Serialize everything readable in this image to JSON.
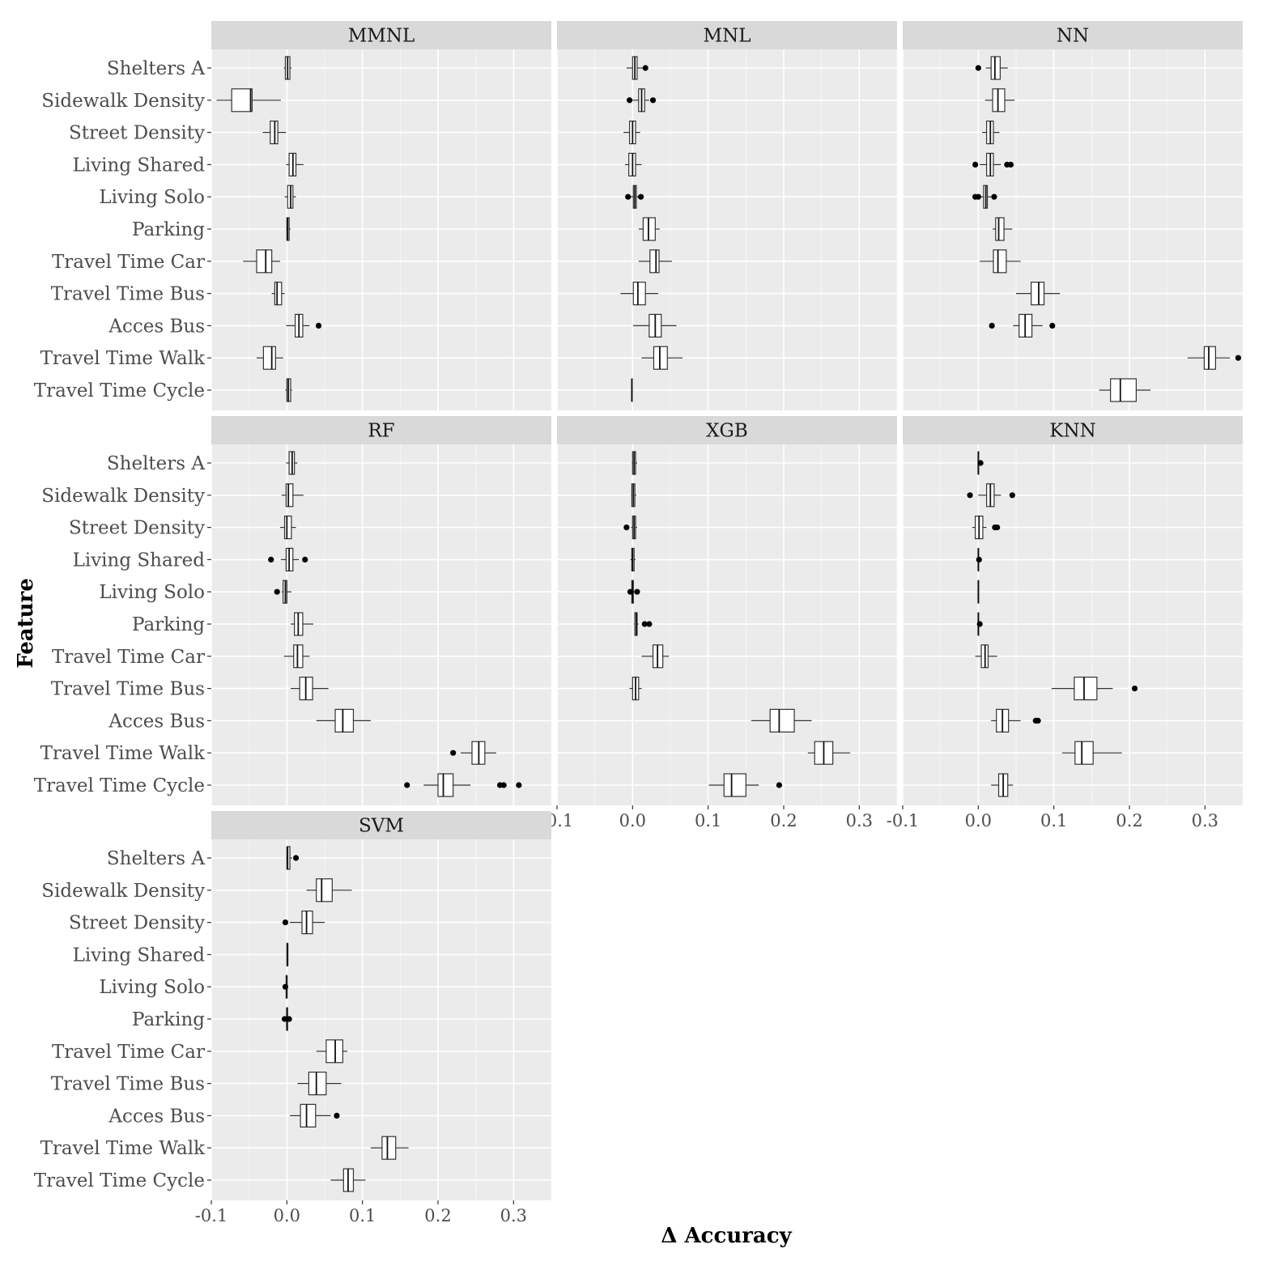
{
  "chart_data": {
    "type": "boxplot",
    "layout": "facet-wrap 3 columns",
    "xlabel": "Δ Accuracy",
    "ylabel": "Feature",
    "xlim": [
      -0.1,
      0.35
    ],
    "xticks": [
      "-0.1",
      "0.0",
      "0.1",
      "0.2",
      "0.3"
    ],
    "features": [
      "Shelters A",
      "Sidewalk Density",
      "Street Density",
      "Living Shared",
      "Living Solo",
      "Parking",
      "Travel Time Car",
      "Travel Time Bus",
      "Acces Bus",
      "Travel Time Walk",
      "Travel Time Cycle"
    ],
    "grid": true,
    "panels": [
      {
        "name": "MMNL",
        "boxes": [
          {
            "feature": "Shelters A",
            "min": -0.004,
            "q1": -0.002,
            "median": 0.001,
            "q3": 0.004,
            "max": 0.006,
            "outliers": []
          },
          {
            "feature": "Sidewalk Density",
            "min": -0.093,
            "q1": -0.073,
            "median": -0.048,
            "q3": -0.046,
            "max": -0.008,
            "outliers": []
          },
          {
            "feature": "Street Density",
            "min": -0.032,
            "q1": -0.022,
            "median": -0.016,
            "q3": -0.012,
            "max": -0.001,
            "outliers": []
          },
          {
            "feature": "Living Shared",
            "min": -0.001,
            "q1": 0.003,
            "median": 0.008,
            "q3": 0.012,
            "max": 0.022,
            "outliers": []
          },
          {
            "feature": "Living Solo",
            "min": -0.003,
            "q1": 0.001,
            "median": 0.005,
            "q3": 0.008,
            "max": 0.012,
            "outliers": []
          },
          {
            "feature": "Parking",
            "min": -0.001,
            "q1": 0.0,
            "median": 0.001,
            "q3": 0.003,
            "max": 0.005,
            "outliers": []
          },
          {
            "feature": "Travel Time Car",
            "min": -0.058,
            "q1": -0.04,
            "median": -0.028,
            "q3": -0.02,
            "max": -0.009,
            "outliers": []
          },
          {
            "feature": "Travel Time Bus",
            "min": -0.02,
            "q1": -0.016,
            "median": -0.013,
            "q3": -0.007,
            "max": -0.003,
            "outliers": []
          },
          {
            "feature": "Acces Bus",
            "min": -0.001,
            "q1": 0.011,
            "median": 0.016,
            "q3": 0.021,
            "max": 0.03,
            "outliers": [
              0.042
            ]
          },
          {
            "feature": "Travel Time Walk",
            "min": -0.04,
            "q1": -0.031,
            "median": -0.02,
            "q3": -0.015,
            "max": -0.005,
            "outliers": []
          },
          {
            "feature": "Travel Time Cycle",
            "min": -0.002,
            "q1": 0.0,
            "median": 0.002,
            "q3": 0.005,
            "max": 0.007,
            "outliers": []
          }
        ]
      },
      {
        "name": "MNL",
        "boxes": [
          {
            "feature": "Shelters A",
            "min": -0.008,
            "q1": 0.0,
            "median": 0.003,
            "q3": 0.006,
            "max": 0.013,
            "outliers": [
              0.017
            ]
          },
          {
            "feature": "Sidewalk Density",
            "min": 0.0,
            "q1": 0.008,
            "median": 0.012,
            "q3": 0.016,
            "max": 0.022,
            "outliers": [
              -0.004,
              0.027
            ]
          },
          {
            "feature": "Street Density",
            "min": -0.012,
            "q1": -0.004,
            "median": 0.0,
            "q3": 0.004,
            "max": 0.01,
            "outliers": []
          },
          {
            "feature": "Living Shared",
            "min": -0.01,
            "q1": -0.005,
            "median": 0.0,
            "q3": 0.004,
            "max": 0.012,
            "outliers": []
          },
          {
            "feature": "Living Solo",
            "min": -0.003,
            "q1": 0.001,
            "median": 0.003,
            "q3": 0.005,
            "max": 0.008,
            "outliers": [
              -0.006,
              0.011
            ]
          },
          {
            "feature": "Parking",
            "min": 0.008,
            "q1": 0.014,
            "median": 0.021,
            "q3": 0.03,
            "max": 0.036,
            "outliers": []
          },
          {
            "feature": "Travel Time Car",
            "min": 0.008,
            "q1": 0.023,
            "median": 0.031,
            "q3": 0.035,
            "max": 0.052,
            "outliers": []
          },
          {
            "feature": "Travel Time Bus",
            "min": -0.016,
            "q1": 0.001,
            "median": 0.007,
            "q3": 0.017,
            "max": 0.034,
            "outliers": []
          },
          {
            "feature": "Acces Bus",
            "min": 0.001,
            "q1": 0.022,
            "median": 0.03,
            "q3": 0.038,
            "max": 0.058,
            "outliers": []
          },
          {
            "feature": "Travel Time Walk",
            "min": 0.012,
            "q1": 0.028,
            "median": 0.036,
            "q3": 0.046,
            "max": 0.066,
            "outliers": []
          },
          {
            "feature": "Travel Time Cycle",
            "min": -0.001,
            "q1": -0.001,
            "median": -0.001,
            "q3": -0.001,
            "max": -0.001,
            "outliers": []
          }
        ]
      },
      {
        "name": "NN",
        "boxes": [
          {
            "feature": "Shelters A",
            "min": 0.01,
            "q1": 0.017,
            "median": 0.022,
            "q3": 0.029,
            "max": 0.039,
            "outliers": [
              0.0
            ]
          },
          {
            "feature": "Sidewalk Density",
            "min": 0.009,
            "q1": 0.019,
            "median": 0.026,
            "q3": 0.035,
            "max": 0.048,
            "outliers": []
          },
          {
            "feature": "Street Density",
            "min": 0.005,
            "q1": 0.011,
            "median": 0.016,
            "q3": 0.02,
            "max": 0.028,
            "outliers": []
          },
          {
            "feature": "Living Shared",
            "min": 0.002,
            "q1": 0.011,
            "median": 0.016,
            "q3": 0.02,
            "max": 0.03,
            "outliers": [
              -0.004,
              0.038,
              0.043
            ]
          },
          {
            "feature": "Living Solo",
            "min": 0.002,
            "q1": 0.007,
            "median": 0.01,
            "q3": 0.012,
            "max": 0.017,
            "outliers": [
              -0.004,
              0.0,
              0.021
            ]
          },
          {
            "feature": "Parking",
            "min": 0.019,
            "q1": 0.023,
            "median": 0.027,
            "q3": 0.034,
            "max": 0.045,
            "outliers": []
          },
          {
            "feature": "Travel Time Car",
            "min": 0.002,
            "q1": 0.02,
            "median": 0.026,
            "q3": 0.037,
            "max": 0.056,
            "outliers": []
          },
          {
            "feature": "Travel Time Bus",
            "min": 0.05,
            "q1": 0.07,
            "median": 0.08,
            "q3": 0.087,
            "max": 0.108,
            "outliers": []
          },
          {
            "feature": "Acces Bus",
            "min": 0.046,
            "q1": 0.054,
            "median": 0.062,
            "q3": 0.071,
            "max": 0.085,
            "outliers": [
              0.018,
              0.098
            ]
          },
          {
            "feature": "Travel Time Walk",
            "min": 0.277,
            "q1": 0.299,
            "median": 0.305,
            "q3": 0.314,
            "max": 0.333,
            "outliers": [
              0.344
            ]
          },
          {
            "feature": "Travel Time Cycle",
            "min": 0.16,
            "q1": 0.175,
            "median": 0.188,
            "q3": 0.209,
            "max": 0.228,
            "outliers": []
          }
        ]
      },
      {
        "name": "RF",
        "boxes": [
          {
            "feature": "Shelters A",
            "min": -0.001,
            "q1": 0.003,
            "median": 0.007,
            "q3": 0.01,
            "max": 0.014,
            "outliers": []
          },
          {
            "feature": "Sidewalk Density",
            "min": -0.007,
            "q1": -0.001,
            "median": 0.002,
            "q3": 0.008,
            "max": 0.022,
            "outliers": []
          },
          {
            "feature": "Street Density",
            "min": -0.009,
            "q1": -0.003,
            "median": 0.0,
            "q3": 0.006,
            "max": 0.012,
            "outliers": []
          },
          {
            "feature": "Living Shared",
            "min": -0.008,
            "q1": -0.001,
            "median": 0.003,
            "q3": 0.008,
            "max": 0.016,
            "outliers": [
              -0.021,
              0.024
            ]
          },
          {
            "feature": "Living Solo",
            "min": -0.007,
            "q1": -0.005,
            "median": -0.002,
            "q3": 0.0,
            "max": 0.006,
            "outliers": [
              -0.013
            ]
          },
          {
            "feature": "Parking",
            "min": 0.005,
            "q1": 0.01,
            "median": 0.015,
            "q3": 0.021,
            "max": 0.035,
            "outliers": []
          },
          {
            "feature": "Travel Time Car",
            "min": -0.004,
            "q1": 0.009,
            "median": 0.014,
            "q3": 0.021,
            "max": 0.03,
            "outliers": []
          },
          {
            "feature": "Travel Time Bus",
            "min": 0.005,
            "q1": 0.017,
            "median": 0.025,
            "q3": 0.034,
            "max": 0.055,
            "outliers": []
          },
          {
            "feature": "Acces Bus",
            "min": 0.039,
            "q1": 0.064,
            "median": 0.074,
            "q3": 0.088,
            "max": 0.111,
            "outliers": []
          },
          {
            "feature": "Travel Time Walk",
            "min": 0.23,
            "q1": 0.245,
            "median": 0.254,
            "q3": 0.262,
            "max": 0.277,
            "outliers": [
              0.22
            ]
          },
          {
            "feature": "Travel Time Cycle",
            "min": 0.181,
            "q1": 0.2,
            "median": 0.207,
            "q3": 0.22,
            "max": 0.243,
            "outliers": [
              0.159,
              0.282,
              0.287,
              0.307
            ]
          }
        ]
      },
      {
        "name": "XGB",
        "boxes": [
          {
            "feature": "Shelters A",
            "min": -0.001,
            "q1": 0.0,
            "median": 0.002,
            "q3": 0.004,
            "max": 0.006,
            "outliers": []
          },
          {
            "feature": "Sidewalk Density",
            "min": -0.002,
            "q1": -0.001,
            "median": 0.001,
            "q3": 0.003,
            "max": 0.005,
            "outliers": []
          },
          {
            "feature": "Street Density",
            "min": -0.002,
            "q1": 0.0,
            "median": 0.002,
            "q3": 0.004,
            "max": 0.006,
            "outliers": [
              -0.008
            ]
          },
          {
            "feature": "Living Shared",
            "min": -0.003,
            "q1": -0.001,
            "median": 0.0,
            "q3": 0.002,
            "max": 0.004,
            "outliers": []
          },
          {
            "feature": "Living Solo",
            "min": -0.002,
            "q1": -0.001,
            "median": 0.0,
            "q3": 0.001,
            "max": 0.003,
            "outliers": [
              -0.003,
              0.006
            ]
          },
          {
            "feature": "Parking",
            "min": 0.002,
            "q1": 0.003,
            "median": 0.005,
            "q3": 0.006,
            "max": 0.008,
            "outliers": [
              0.016,
              0.022
            ]
          },
          {
            "feature": "Travel Time Car",
            "min": 0.012,
            "q1": 0.027,
            "median": 0.033,
            "q3": 0.04,
            "max": 0.048,
            "outliers": []
          },
          {
            "feature": "Travel Time Bus",
            "min": -0.004,
            "q1": 0.0,
            "median": 0.004,
            "q3": 0.008,
            "max": 0.012,
            "outliers": []
          },
          {
            "feature": "Acces Bus",
            "min": 0.157,
            "q1": 0.182,
            "median": 0.194,
            "q3": 0.214,
            "max": 0.237,
            "outliers": []
          },
          {
            "feature": "Travel Time Walk",
            "min": 0.232,
            "q1": 0.241,
            "median": 0.253,
            "q3": 0.265,
            "max": 0.288,
            "outliers": []
          },
          {
            "feature": "Travel Time Cycle",
            "min": 0.101,
            "q1": 0.121,
            "median": 0.131,
            "q3": 0.15,
            "max": 0.167,
            "outliers": [
              0.194
            ]
          }
        ]
      },
      {
        "name": "KNN",
        "boxes": [
          {
            "feature": "Shelters A",
            "min": -0.001,
            "q1": 0.0,
            "median": 0.0,
            "q3": 0.0,
            "max": 0.002,
            "outliers": [
              0.003
            ]
          },
          {
            "feature": "Sidewalk Density",
            "min": 0.0,
            "q1": 0.011,
            "median": 0.016,
            "q3": 0.021,
            "max": 0.03,
            "outliers": [
              -0.011,
              0.045
            ]
          },
          {
            "feature": "Street Density",
            "min": -0.008,
            "q1": -0.004,
            "median": 0.001,
            "q3": 0.006,
            "max": 0.011,
            "outliers": [
              0.022,
              0.025
            ]
          },
          {
            "feature": "Living Shared",
            "min": -0.001,
            "q1": 0.0,
            "median": 0.0,
            "q3": 0.0,
            "max": 0.001,
            "outliers": [
              0.001
            ]
          },
          {
            "feature": "Living Solo",
            "min": -0.001,
            "q1": 0.0,
            "median": 0.0,
            "q3": 0.0,
            "max": 0.001,
            "outliers": []
          },
          {
            "feature": "Parking",
            "min": -0.001,
            "q1": 0.0,
            "median": 0.0,
            "q3": 0.0,
            "max": 0.001,
            "outliers": [
              0.002
            ]
          },
          {
            "feature": "Travel Time Car",
            "min": -0.004,
            "q1": 0.004,
            "median": 0.009,
            "q3": 0.013,
            "max": 0.025,
            "outliers": []
          },
          {
            "feature": "Travel Time Bus",
            "min": 0.097,
            "q1": 0.127,
            "median": 0.14,
            "q3": 0.157,
            "max": 0.178,
            "outliers": [
              0.207
            ]
          },
          {
            "feature": "Acces Bus",
            "min": 0.017,
            "q1": 0.024,
            "median": 0.032,
            "q3": 0.04,
            "max": 0.056,
            "outliers": [
              0.076,
              0.079
            ]
          },
          {
            "feature": "Travel Time Walk",
            "min": 0.111,
            "q1": 0.128,
            "median": 0.137,
            "q3": 0.152,
            "max": 0.19,
            "outliers": []
          },
          {
            "feature": "Travel Time Cycle",
            "min": 0.017,
            "q1": 0.027,
            "median": 0.033,
            "q3": 0.039,
            "max": 0.046,
            "outliers": []
          }
        ]
      },
      {
        "name": "SVM",
        "boxes": [
          {
            "feature": "Shelters A",
            "min": -0.001,
            "q1": 0.0,
            "median": 0.001,
            "q3": 0.004,
            "max": 0.007,
            "outliers": [
              0.012
            ]
          },
          {
            "feature": "Sidewalk Density",
            "min": 0.026,
            "q1": 0.039,
            "median": 0.046,
            "q3": 0.06,
            "max": 0.086,
            "outliers": []
          },
          {
            "feature": "Street Density",
            "min": 0.004,
            "q1": 0.02,
            "median": 0.026,
            "q3": 0.034,
            "max": 0.05,
            "outliers": [
              -0.002
            ]
          },
          {
            "feature": "Living Shared",
            "min": 0.0,
            "q1": 0.0,
            "median": 0.001,
            "q3": 0.001,
            "max": 0.002,
            "outliers": []
          },
          {
            "feature": "Living Solo",
            "min": -0.002,
            "q1": -0.001,
            "median": 0.0,
            "q3": 0.0,
            "max": 0.0,
            "outliers": [
              -0.002
            ]
          },
          {
            "feature": "Parking",
            "min": -0.001,
            "q1": 0.0,
            "median": 0.0,
            "q3": 0.001,
            "max": 0.002,
            "outliers": [
              -0.003,
              0.003
            ]
          },
          {
            "feature": "Travel Time Car",
            "min": 0.039,
            "q1": 0.052,
            "median": 0.064,
            "q3": 0.074,
            "max": 0.08,
            "outliers": []
          },
          {
            "feature": "Travel Time Bus",
            "min": 0.014,
            "q1": 0.029,
            "median": 0.039,
            "q3": 0.052,
            "max": 0.072,
            "outliers": []
          },
          {
            "feature": "Acces Bus",
            "min": 0.004,
            "q1": 0.018,
            "median": 0.026,
            "q3": 0.038,
            "max": 0.058,
            "outliers": [
              0.066
            ]
          },
          {
            "feature": "Travel Time Walk",
            "min": 0.111,
            "q1": 0.126,
            "median": 0.133,
            "q3": 0.144,
            "max": 0.161,
            "outliers": []
          },
          {
            "feature": "Travel Time Cycle",
            "min": 0.058,
            "q1": 0.075,
            "median": 0.081,
            "q3": 0.088,
            "max": 0.104,
            "outliers": []
          }
        ]
      }
    ]
  }
}
